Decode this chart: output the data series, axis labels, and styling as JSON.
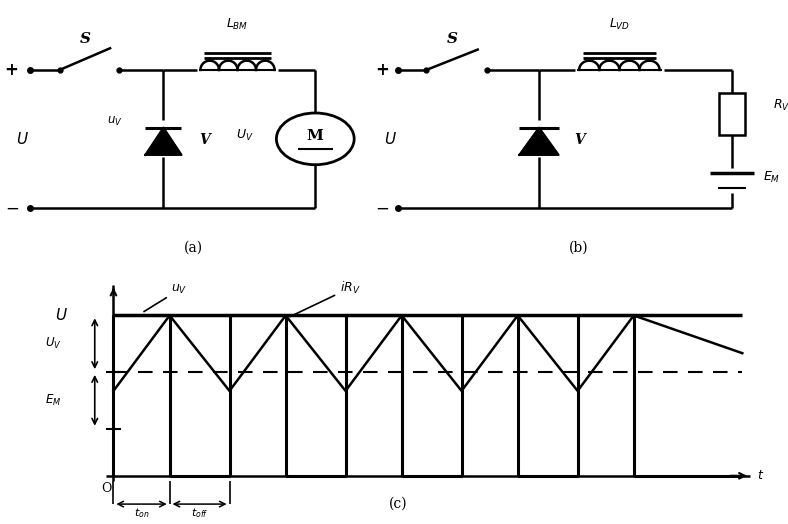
{
  "bg_color": "#ffffff",
  "line_color": "#000000",
  "fig_width": 7.88,
  "fig_height": 5.24,
  "label_a": "(a)",
  "label_b": "(b)",
  "label_c": "(c)"
}
